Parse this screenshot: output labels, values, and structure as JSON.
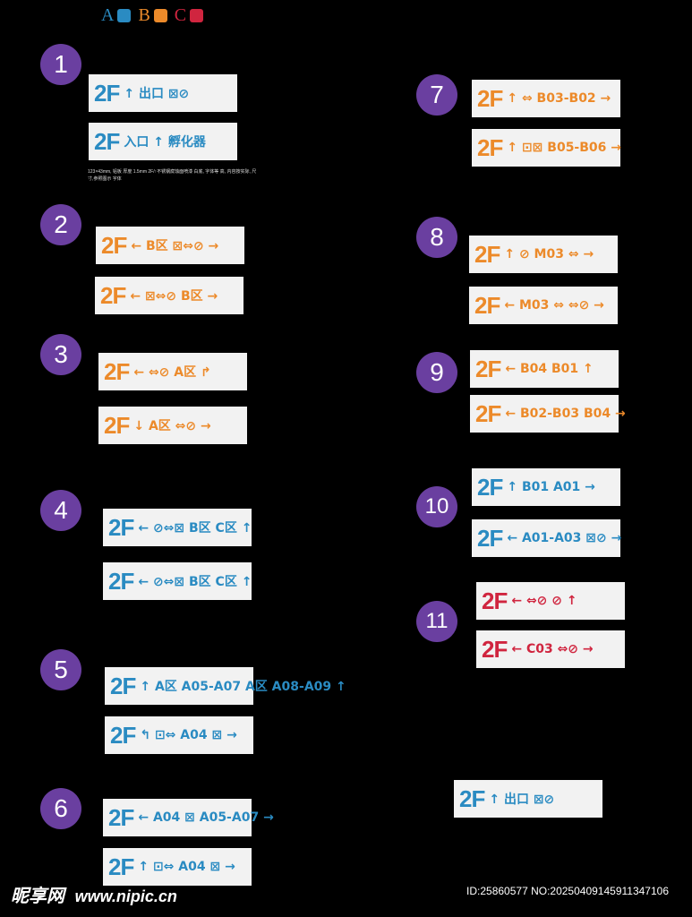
{
  "legend": [
    {
      "letter": "A",
      "color": "#2a8bc2"
    },
    {
      "letter": "B",
      "color": "#ec8a2a"
    },
    {
      "letter": "C",
      "color": "#d0253f"
    }
  ],
  "groups": [
    {
      "num": "1",
      "signs": [
        {
          "floor": "2F",
          "text": "↑ 出口 ⊠⊘",
          "color": "blue"
        },
        {
          "floor": "2F",
          "text": "入口 ↑ 孵化器",
          "color": "blue"
        }
      ]
    },
    {
      "num": "2",
      "signs": [
        {
          "floor": "2F",
          "text": "← B区 ⊠⇔⊘ →",
          "color": "orange"
        },
        {
          "floor": "2F",
          "text": "← ⊠⇔⊘ B区 →",
          "color": "orange"
        }
      ]
    },
    {
      "num": "3",
      "signs": [
        {
          "floor": "2F",
          "text": "← ⇔⊘ A区 ↱",
          "color": "orange"
        },
        {
          "floor": "2F",
          "text": "↓ A区 ⇔⊘ →",
          "color": "orange"
        }
      ]
    },
    {
      "num": "4",
      "signs": [
        {
          "floor": "2F",
          "text": "← ⊘⇔⊠ B区 C区 ↑",
          "color": "blue"
        },
        {
          "floor": "2F",
          "text": "← ⊘⇔⊠ B区 C区 ↑",
          "color": "blue"
        }
      ]
    },
    {
      "num": "5",
      "signs": [
        {
          "floor": "2F",
          "text": "↑ A区 A05-A07 A区 A08-A09 ↑",
          "color": "blue"
        },
        {
          "floor": "2F",
          "text": "↰ ⊡⇔ A04 ⊠ →",
          "color": "blue"
        }
      ]
    },
    {
      "num": "6",
      "signs": [
        {
          "floor": "2F",
          "text": "← A04 ⊠ A05-A07 →",
          "color": "blue"
        },
        {
          "floor": "2F",
          "text": "↑ ⊡⇔ A04 ⊠ →",
          "color": "blue"
        }
      ]
    },
    {
      "num": "7",
      "signs": [
        {
          "floor": "2F",
          "text": "↑ ⇔ B03-B02 →",
          "color": "orange"
        },
        {
          "floor": "2F",
          "text": "↑ ⊡⊠ B05-B06 →",
          "color": "orange"
        }
      ]
    },
    {
      "num": "8",
      "signs": [
        {
          "floor": "2F",
          "text": "↑ ⊘ M03 ⇔ →",
          "color": "orange"
        },
        {
          "floor": "2F",
          "text": "← M03 ⇔ ⇔⊘ →",
          "color": "orange"
        }
      ]
    },
    {
      "num": "9",
      "signs": [
        {
          "floor": "2F",
          "text": "← B04 B01 ↑",
          "color": "orange"
        },
        {
          "floor": "2F",
          "text": "← B02-B03 B04 →",
          "color": "orange"
        }
      ]
    },
    {
      "num": "10",
      "signs": [
        {
          "floor": "2F",
          "text": "↑ B01 A01 →",
          "color": "blue"
        },
        {
          "floor": "2F",
          "text": "← A01-A03 ⊠⊘ →",
          "color": "blue"
        }
      ]
    },
    {
      "num": "11",
      "signs": [
        {
          "floor": "2F",
          "text": "← ⇔⊘ ⊘ ↑",
          "color": "red"
        },
        {
          "floor": "2F",
          "text": "← C03 ⇔⊘ →",
          "color": "red"
        }
      ]
    }
  ],
  "extra_sign": {
    "floor": "2F",
    "text": "↑ 出口 ⊠⊘",
    "color": "blue"
  },
  "note": "123×43mm, 铝板 厚度 1.5mm 2F/↑不锈钢腐蚀面喷漆 白底, 字体等 高, 内容按实际, 尺寸,参照图示 字体",
  "footer": {
    "logo": "昵享网",
    "url": "www.nipic.cn",
    "id": "ID:25860577 NO:20250409145911347106"
  }
}
